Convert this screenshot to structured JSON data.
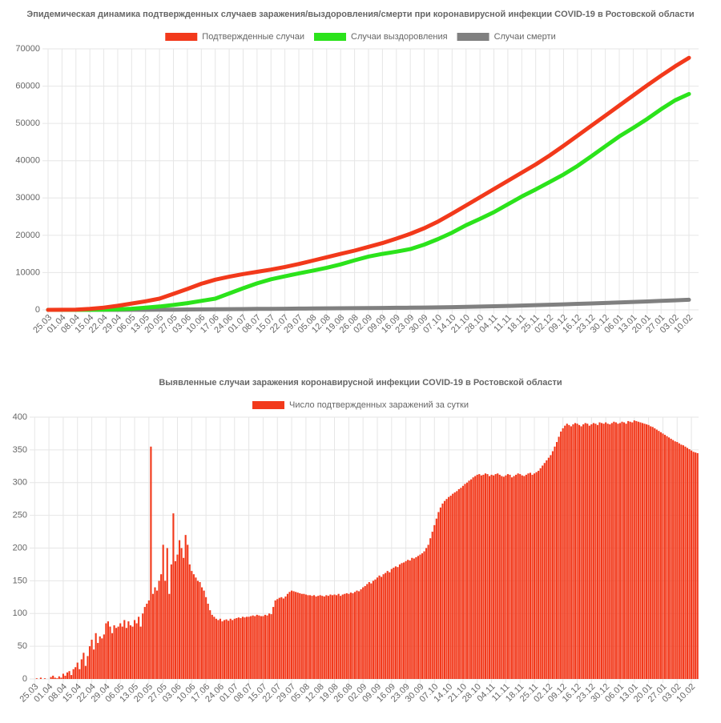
{
  "chart_data": [
    {
      "type": "line",
      "title": "Эпидемическая динамика подтвержденных случаев заражения/выздоровления/смерти при коронавирусной инфекции COVID-19 в Ростовской области",
      "categories": [
        "25.03",
        "01.04",
        "08.04",
        "15.04",
        "22.04",
        "29.04",
        "06.05",
        "13.05",
        "20.05",
        "27.05",
        "03.06",
        "10.06",
        "17.06",
        "24.06",
        "01.07",
        "08.07",
        "15.07",
        "22.07",
        "29.07",
        "05.08",
        "12.08",
        "19.08",
        "26.08",
        "02.09",
        "09.09",
        "16.09",
        "23.09",
        "30.09",
        "07.10",
        "14.10",
        "21.10",
        "28.10",
        "04.11",
        "11.11",
        "18.11",
        "25.11",
        "02.12",
        "09.12",
        "16.12",
        "23.12",
        "30.12",
        "06.01",
        "13.01",
        "20.01",
        "27.01",
        "03.02",
        "10.02"
      ],
      "series": [
        {
          "name": "Подтвержденные случаи",
          "color": "#f2391b",
          "values": [
            0,
            20,
            50,
            250,
            600,
            1100,
            1700,
            2300,
            3000,
            4300,
            5600,
            7000,
            8100,
            8900,
            9600,
            10200,
            10800,
            11500,
            12300,
            13200,
            14100,
            15000,
            15900,
            16900,
            17900,
            19100,
            20400,
            21900,
            23700,
            25800,
            28000,
            30200,
            32400,
            34600,
            36800,
            39000,
            41400,
            44000,
            46700,
            49400,
            52100,
            54800,
            57500,
            60200,
            62800,
            65300,
            67600
          ]
        },
        {
          "name": "Случаи выздоровления",
          "color": "#2be31b",
          "values": [
            0,
            0,
            5,
            20,
            60,
            150,
            300,
            600,
            900,
            1300,
            1800,
            2400,
            3000,
            4400,
            5800,
            7100,
            8200,
            9000,
            9800,
            10500,
            11300,
            12200,
            13300,
            14300,
            15000,
            15600,
            16300,
            17500,
            19000,
            20700,
            22700,
            24400,
            26200,
            28300,
            30400,
            32300,
            34300,
            36300,
            38600,
            41200,
            43900,
            46500,
            48800,
            51200,
            53800,
            56200,
            57900
          ]
        },
        {
          "name": "Случаи смерти",
          "color": "#808080",
          "values": [
            0,
            0,
            1,
            2,
            4,
            8,
            15,
            30,
            45,
            70,
            100,
            130,
            160,
            190,
            220,
            250,
            280,
            310,
            340,
            370,
            400,
            430,
            460,
            490,
            520,
            550,
            580,
            620,
            670,
            730,
            800,
            880,
            960,
            1050,
            1150,
            1260,
            1370,
            1480,
            1600,
            1720,
            1850,
            1980,
            2120,
            2260,
            2410,
            2560,
            2700
          ]
        }
      ],
      "ylim": [
        0,
        70000
      ],
      "yticks": [
        0,
        10000,
        20000,
        30000,
        40000,
        50000,
        60000,
        70000
      ],
      "grid": true,
      "legend": "top"
    },
    {
      "type": "bar",
      "title": "Выявленные случаи заражения коронавирусной инфекции COVID-19 в Ростовской области",
      "categories": [
        "25.03",
        null,
        null,
        null,
        null,
        null,
        null,
        "01.04",
        null,
        null,
        null,
        null,
        null,
        null,
        "08.04",
        null,
        null,
        null,
        null,
        null,
        null,
        "15.04",
        null,
        null,
        null,
        null,
        null,
        null,
        "22.04",
        null,
        null,
        null,
        null,
        null,
        null,
        "29.04",
        null,
        null,
        null,
        null,
        null,
        null,
        "06.05",
        null,
        null,
        null,
        null,
        null,
        null,
        "13.05",
        null,
        null,
        null,
        null,
        null,
        null,
        "20.05",
        null,
        null,
        null,
        null,
        null,
        null,
        "27.05",
        null,
        null,
        null,
        null,
        null,
        null,
        "03.06",
        null,
        null,
        null,
        null,
        null,
        null,
        "10.06",
        null,
        null,
        null,
        null,
        null,
        null,
        "17.06",
        null,
        null,
        null,
        null,
        null,
        null,
        "24.06",
        null,
        null,
        null,
        null,
        null,
        null,
        "01.07",
        null,
        null,
        null,
        null,
        null,
        null,
        "08.07",
        null,
        null,
        null,
        null,
        null,
        null,
        "15.07",
        null,
        null,
        null,
        null,
        null,
        null,
        "22.07",
        null,
        null,
        null,
        null,
        null,
        null,
        "29.07",
        null,
        null,
        null,
        null,
        null,
        null,
        "05.08",
        null,
        null,
        null,
        null,
        null,
        null,
        "12.08",
        null,
        null,
        null,
        null,
        null,
        null,
        "19.08",
        null,
        null,
        null,
        null,
        null,
        null,
        "26.08",
        null,
        null,
        null,
        null,
        null,
        null,
        "02.09",
        null,
        null,
        null,
        null,
        null,
        null,
        "09.09",
        null,
        null,
        null,
        null,
        null,
        null,
        "16.09",
        null,
        null,
        null,
        null,
        null,
        null,
        "23.09",
        null,
        null,
        null,
        null,
        null,
        null,
        "30.09",
        null,
        null,
        null,
        null,
        null,
        null,
        "07.10",
        null,
        null,
        null,
        null,
        null,
        null,
        "14.10",
        null,
        null,
        null,
        null,
        null,
        null,
        "21.10",
        null,
        null,
        null,
        null,
        null,
        null,
        "28.10",
        null,
        null,
        null,
        null,
        null,
        null,
        "04.11",
        null,
        null,
        null,
        null,
        null,
        null,
        "11.11",
        null,
        null,
        null,
        null,
        null,
        null,
        "18.11",
        null,
        null,
        null,
        null,
        null,
        null,
        "25.11",
        null,
        null,
        null,
        null,
        null,
        null,
        "02.12",
        null,
        null,
        null,
        null,
        null,
        null,
        "09.12",
        null,
        null,
        null,
        null,
        null,
        null,
        "16.12",
        null,
        null,
        null,
        null,
        null,
        null,
        "23.12",
        null,
        null,
        null,
        null,
        null,
        null,
        "30.12",
        null,
        null,
        null,
        null,
        null,
        null,
        "06.01",
        null,
        null,
        null,
        null,
        null,
        null,
        "13.01",
        null,
        null,
        null,
        null,
        null,
        null,
        "20.01",
        null,
        null,
        null,
        null,
        null,
        null,
        "27.01",
        null,
        null,
        null,
        null,
        null,
        null,
        "03.02",
        null,
        null,
        null,
        null,
        null,
        null,
        "10.02",
        null,
        null,
        null
      ],
      "series": [
        {
          "name": "Число подтвержденных заражений за сутки",
          "color": "#f2391b",
          "values": [
            0,
            1,
            0,
            2,
            0,
            1,
            0,
            0,
            3,
            5,
            2,
            1,
            4,
            2,
            8,
            5,
            10,
            12,
            6,
            15,
            18,
            25,
            15,
            30,
            40,
            20,
            35,
            50,
            60,
            45,
            70,
            55,
            65,
            62,
            68,
            85,
            88,
            80,
            70,
            82,
            78,
            80,
            85,
            80,
            90,
            78,
            88,
            82,
            80,
            90,
            85,
            95,
            80,
            100,
            110,
            115,
            120,
            355,
            130,
            140,
            135,
            150,
            160,
            205,
            150,
            200,
            130,
            175,
            253,
            180,
            190,
            212,
            200,
            185,
            220,
            205,
            175,
            165,
            160,
            155,
            150,
            148,
            140,
            135,
            125,
            115,
            105,
            98,
            95,
            92,
            90,
            92,
            88,
            90,
            91,
            89,
            92,
            90,
            92,
            93,
            94,
            93,
            95,
            94,
            95,
            95,
            96,
            97,
            96,
            98,
            97,
            96,
            96,
            98,
            97,
            100,
            99,
            110,
            120,
            122,
            124,
            125,
            123,
            126,
            130,
            133,
            135,
            134,
            133,
            132,
            131,
            130,
            130,
            129,
            128,
            128,
            127,
            128,
            126,
            127,
            128,
            127,
            126,
            128,
            127,
            129,
            128,
            129,
            128,
            130,
            127,
            129,
            130,
            131,
            130,
            132,
            131,
            133,
            135,
            134,
            137,
            140,
            142,
            145,
            148,
            146,
            150,
            152,
            155,
            158,
            156,
            160,
            162,
            165,
            163,
            168,
            170,
            172,
            171,
            175,
            177,
            178,
            180,
            182,
            181,
            185,
            184,
            186,
            188,
            190,
            192,
            195,
            200,
            205,
            215,
            225,
            235,
            245,
            255,
            262,
            268,
            272,
            275,
            278,
            280,
            283,
            285,
            287,
            290,
            292,
            295,
            298,
            300,
            303,
            305,
            308,
            310,
            312,
            313,
            311,
            312,
            314,
            313,
            310,
            312,
            311,
            313,
            314,
            312,
            310,
            309,
            311,
            313,
            312,
            308,
            310,
            312,
            314,
            313,
            311,
            310,
            312,
            314,
            315,
            312,
            314,
            316,
            318,
            322,
            326,
            330,
            334,
            338,
            342,
            348,
            355,
            362,
            370,
            378,
            383,
            387,
            390,
            388,
            386,
            389,
            391,
            390,
            388,
            386,
            389,
            391,
            390,
            387,
            389,
            391,
            390,
            388,
            392,
            391,
            390,
            392,
            390,
            389,
            391,
            393,
            392,
            390,
            391,
            393,
            392,
            390,
            394,
            393,
            392,
            395,
            394,
            393,
            392,
            391,
            390,
            389,
            388,
            386,
            385,
            383,
            381,
            379,
            377,
            375,
            373,
            371,
            369,
            367,
            365,
            363,
            362,
            360,
            358,
            357,
            355,
            353,
            351,
            349,
            347,
            346,
            345
          ]
        }
      ],
      "ylim": [
        0,
        400
      ],
      "yticks": [
        0,
        50,
        100,
        150,
        200,
        250,
        300,
        350,
        400
      ],
      "grid": true,
      "legend": "top"
    }
  ]
}
